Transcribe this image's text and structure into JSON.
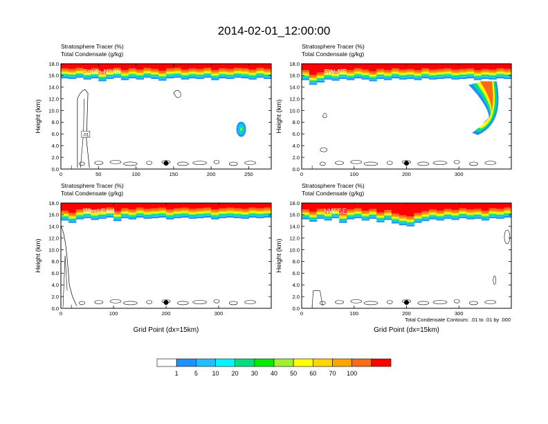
{
  "figure": {
    "title": "2014-02-01_12:00:00",
    "footnote": "Total Condensate Contours: .01 to .01 by .000"
  },
  "colors": {
    "levels": [
      "#ffffff",
      "#1e90ff",
      "#1fbfff",
      "#00f5ff",
      "#00e080",
      "#00ee00",
      "#a0f030",
      "#ffff00",
      "#ffd700",
      "#ffa500",
      "#ff6a14",
      "#ff0000"
    ]
  },
  "colorbar": {
    "labels": [
      "1",
      "5",
      "10",
      "20",
      "30",
      "40",
      "50",
      "60",
      "70",
      "100"
    ]
  },
  "chart_data": [
    {
      "type": "heatmap",
      "panel_label": "South-North",
      "header_line1": "Stratosphere Tracer   (%)",
      "header_line2": "Total Condensate   (g/kg)",
      "ylabel": "Height (km)",
      "xlabel": "",
      "xlim": [
        0,
        280
      ],
      "ylim": [
        0,
        18
      ],
      "xticks": [
        "0",
        "50",
        "100",
        "150",
        "200",
        "250"
      ],
      "xtick_values": [
        0,
        50,
        100,
        150,
        200,
        250
      ],
      "yticks": [
        "0.0",
        "2.0",
        "4.0",
        "6.0",
        "8.0",
        "10.0",
        "12.0",
        "14.0",
        "16.0",
        "18.0"
      ],
      "contour_label": ".01",
      "marker_x": 140,
      "tracer_base_km": [
        15.5,
        15.4,
        15.6,
        15.3,
        15.5,
        15.0,
        15.4,
        15.6,
        15.2,
        15.5,
        15.3,
        15.6,
        15.4,
        15.1,
        15.5,
        15.6,
        15.3,
        15.5,
        15.4,
        15.6,
        15.2,
        15.5,
        15.4,
        15.6,
        15.5,
        15.3,
        15.6,
        15.4
      ]
    },
    {
      "type": "heatmap",
      "panel_label": "SW-NE",
      "header_line1": "Stratosphere Tracer   (%)",
      "header_line2": "Total Condensate   (g/kg)",
      "ylabel": "Height (km)",
      "xlabel": "",
      "xlim": [
        0,
        400
      ],
      "ylim": [
        0,
        18
      ],
      "xticks": [
        "0",
        "100",
        "200",
        "300"
      ],
      "xtick_values": [
        0,
        100,
        200,
        300
      ],
      "yticks": [
        "0.0",
        "2.0",
        "4.0",
        "6.0",
        "8.0",
        "10.0",
        "12.0",
        "14.0",
        "16.0",
        "18.0"
      ],
      "contour_label": "",
      "marker_x": 200,
      "tracer_base_km": [
        15.2,
        14.4,
        14.8,
        15.3,
        15.1,
        15.4,
        15.2,
        15.5,
        15.3,
        15.0,
        15.4,
        15.2,
        15.5,
        15.3,
        15.4,
        15.2,
        15.5,
        15.3,
        15.4,
        15.5,
        15.3,
        15.4,
        15.5,
        15.2,
        15.4,
        15.3,
        15.5,
        15.4
      ]
    },
    {
      "type": "heatmap",
      "panel_label": "West-East",
      "header_line1": "Stratosphere Tracer   (%)",
      "header_line2": "Total Condensate   (g/kg)",
      "ylabel": "Height (km)",
      "xlabel": "Grid Point (dx=15km)",
      "xlim": [
        0,
        400
      ],
      "ylim": [
        0,
        18
      ],
      "xticks": [
        "0",
        "100",
        "200",
        "300"
      ],
      "xtick_values": [
        0,
        100,
        200,
        300
      ],
      "yticks": [
        "0.0",
        "2.0",
        "4.0",
        "6.0",
        "8.0",
        "10.0",
        "12.0",
        "14.0",
        "16.0",
        "18.0"
      ],
      "contour_label": "",
      "marker_x": 200,
      "tracer_base_km": [
        15.0,
        14.6,
        15.2,
        15.4,
        15.1,
        15.3,
        15.5,
        14.9,
        15.4,
        15.2,
        15.5,
        15.3,
        15.4,
        15.5,
        15.2,
        15.4,
        15.5,
        15.3,
        15.4,
        15.5,
        15.2,
        15.4,
        15.5,
        15.4,
        15.3,
        15.5,
        15.4,
        15.5
      ]
    },
    {
      "type": "heatmap",
      "panel_label": "NW-SE",
      "header_line1": "Stratosphere Tracer   (%)",
      "header_line2": "Total Condensate   (g/kg)",
      "ylabel": "Height (km)",
      "xlabel": "Grid Point (dx=15km)",
      "xlim": [
        0,
        400
      ],
      "ylim": [
        0,
        18
      ],
      "xticks": [
        "0",
        "100",
        "200",
        "300"
      ],
      "xtick_values": [
        0,
        100,
        200,
        300
      ],
      "yticks": [
        "0.0",
        "2.0",
        "4.0",
        "6.0",
        "8.0",
        "10.0",
        "12.0",
        "14.0",
        "16.0",
        "18.0"
      ],
      "contour_label": "",
      "marker_x": 200,
      "tracer_base_km": [
        15.2,
        14.8,
        15.3,
        15.0,
        15.4,
        14.6,
        15.2,
        15.4,
        15.0,
        15.3,
        14.7,
        15.1,
        14.5,
        14.2,
        14.0,
        14.6,
        14.9,
        15.2,
        15.0,
        15.3,
        15.1,
        15.4,
        15.2,
        15.3,
        15.0,
        15.4,
        15.3,
        15.5
      ]
    }
  ]
}
